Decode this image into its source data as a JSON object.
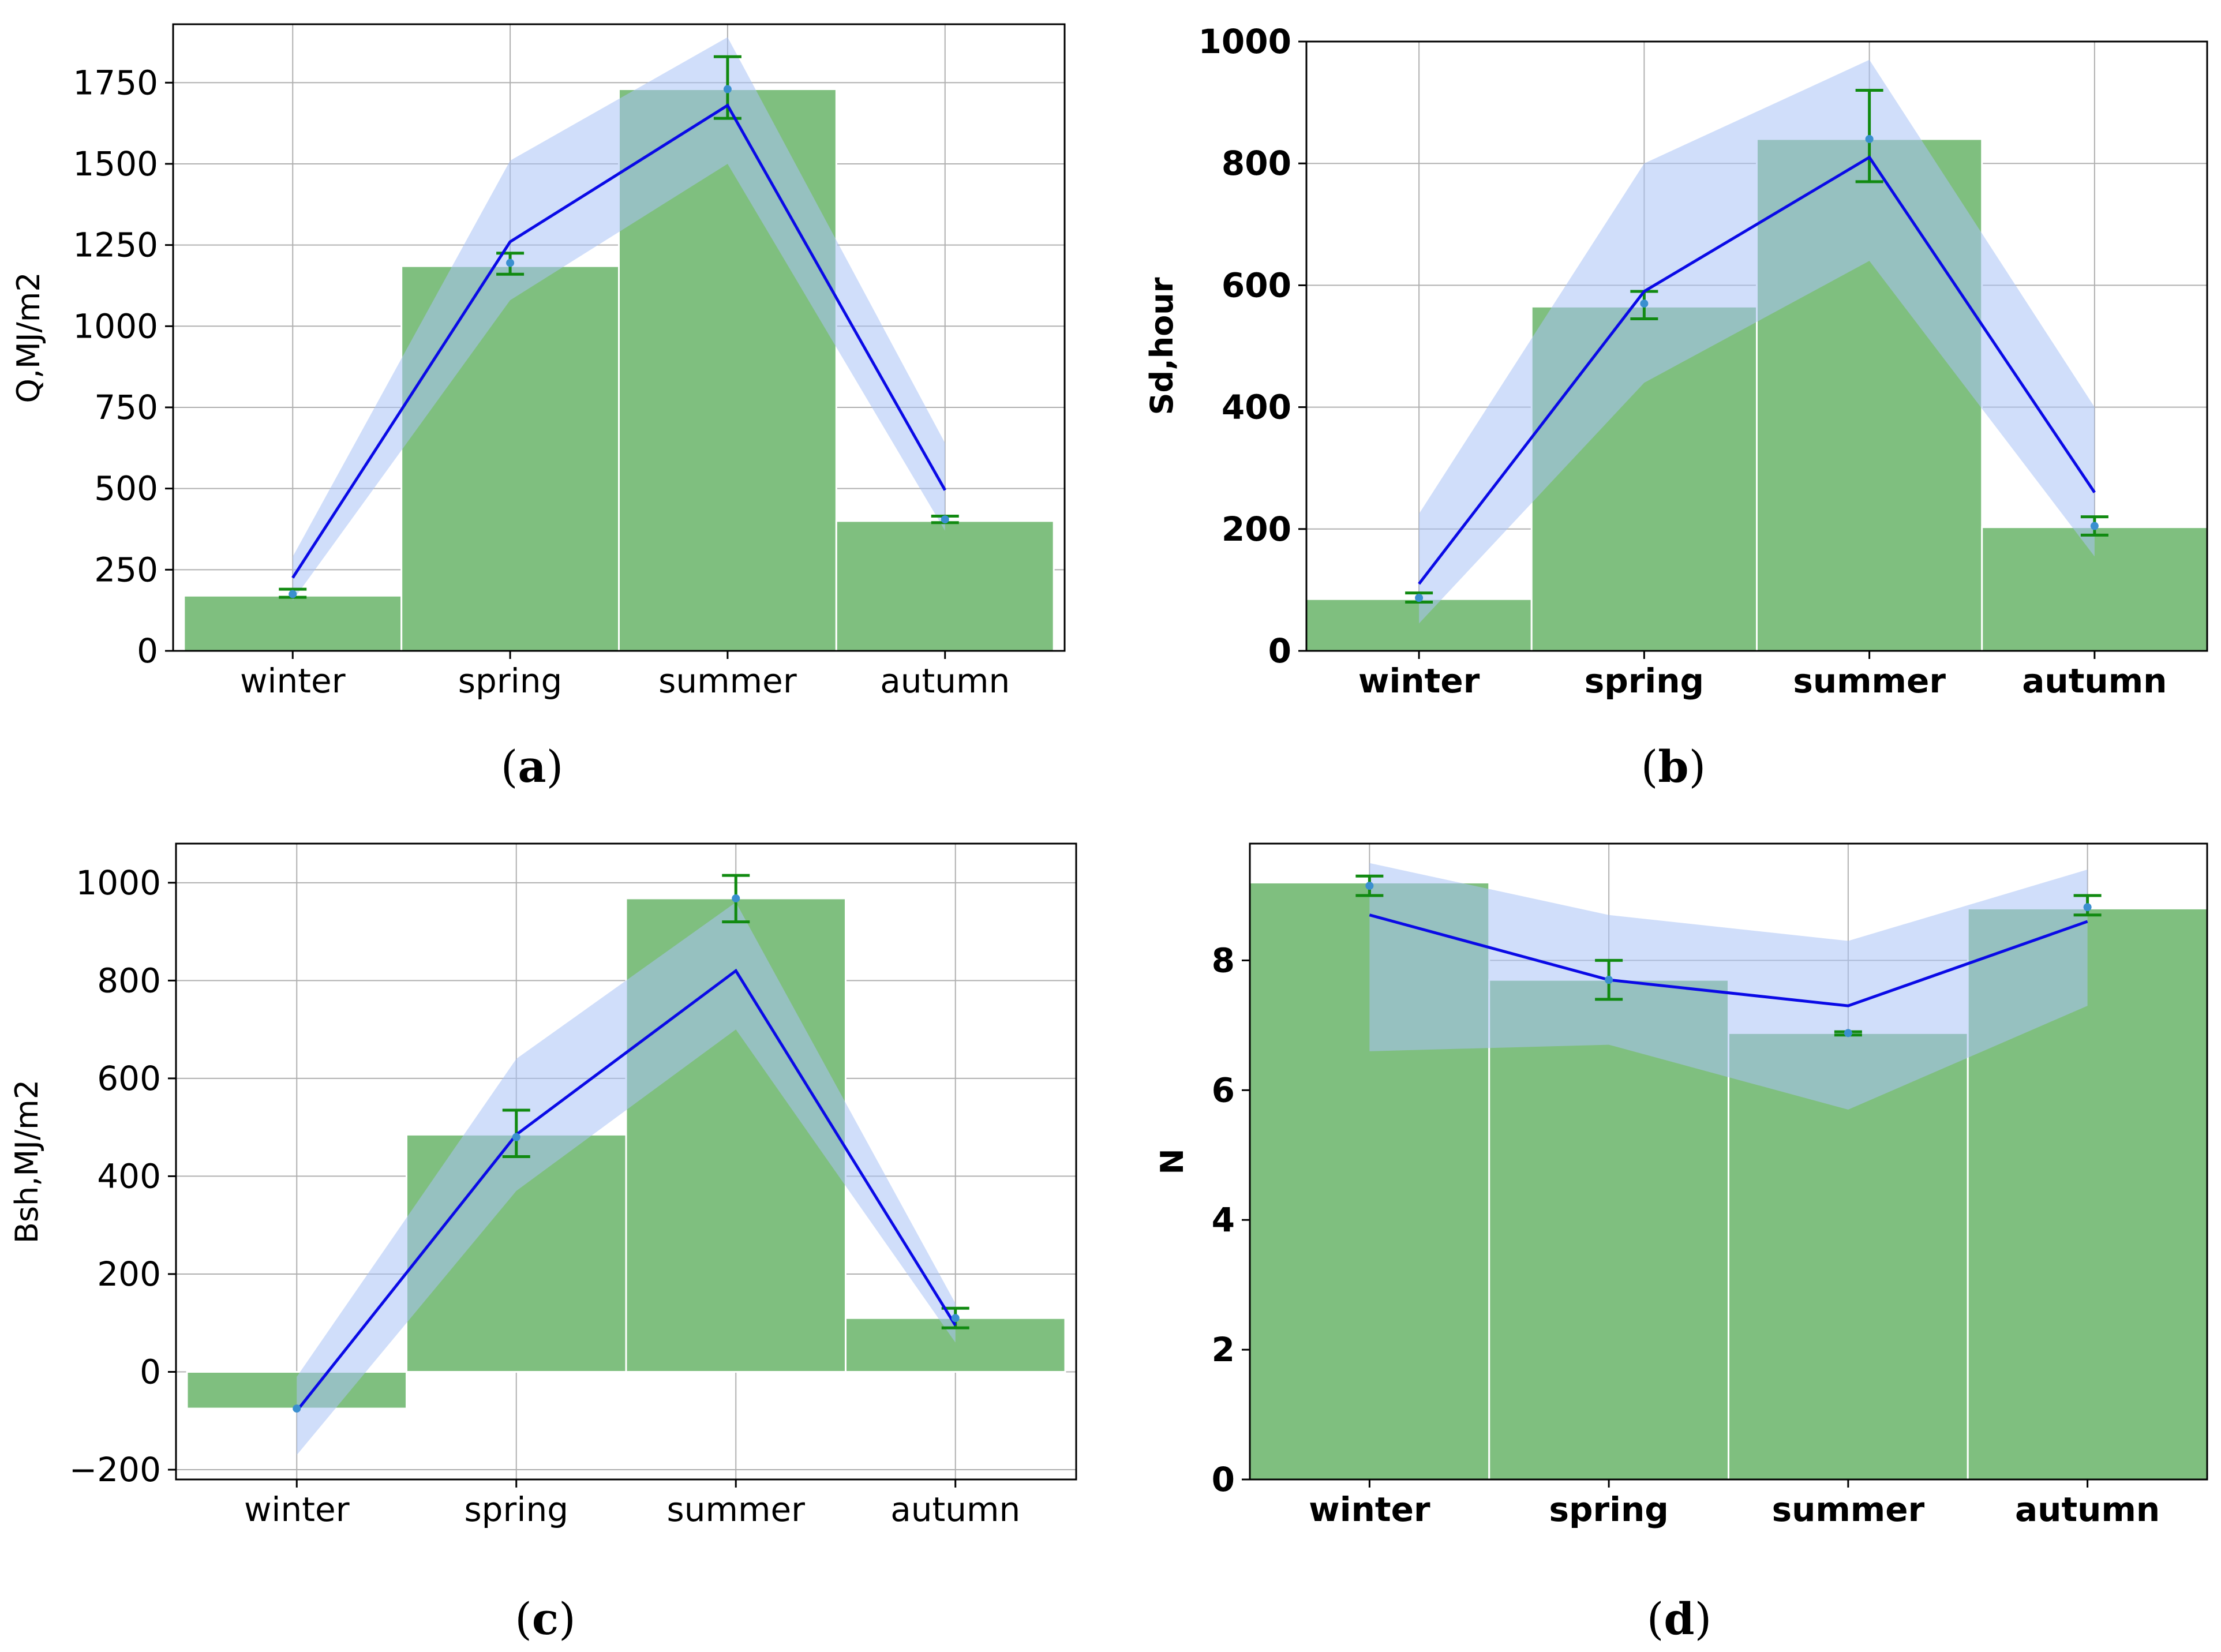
{
  "colors": {
    "bar": "#7fbf7f",
    "bar_edge": "#ffffff",
    "line": "#0a0ae6",
    "band": "#a9c2f5",
    "errorbar": "#118a11",
    "marker": "#3a8fd0",
    "grid": "#b0b0b0",
    "axis": "#000000"
  },
  "chart_data": [
    {
      "id": "a",
      "type": "bar",
      "caption_open": "(",
      "caption_letter": "a",
      "caption_close": ")",
      "ylabel": "Q,MJ/m2",
      "categories": [
        "winter",
        "spring",
        "summer",
        "autumn"
      ],
      "yticks": [
        0,
        250,
        500,
        750,
        1000,
        1250,
        1500,
        1750
      ],
      "ytick_labels": [
        "0",
        "250",
        "500",
        "750",
        "1000",
        "1250",
        "1500",
        "1750"
      ],
      "ylim": [
        0,
        1930
      ],
      "xlim": [
        -0.55,
        3.55
      ],
      "bars": [
        170,
        1185,
        1730,
        400
      ],
      "errors": [
        [
          165,
          190
        ],
        [
          1160,
          1225
        ],
        [
          1640,
          1830
        ],
        [
          395,
          415
        ]
      ],
      "markers": [
        175,
        1195,
        1730,
        405
      ],
      "line": [
        225,
        1260,
        1680,
        495
      ],
      "band_low": [
        155,
        1080,
        1500,
        370
      ],
      "band_high": [
        290,
        1510,
        1890,
        640
      ]
    },
    {
      "id": "b",
      "type": "bar",
      "caption_open": "(",
      "caption_letter": "b",
      "caption_close": ")",
      "ylabel": "Sd,hour",
      "categories": [
        "winter",
        "spring",
        "summer",
        "autumn"
      ],
      "yticks": [
        0,
        200,
        400,
        600,
        800,
        1000
      ],
      "ytick_labels": [
        "0",
        "200",
        "400",
        "600",
        "800",
        "1000"
      ],
      "ylim": [
        0,
        1000
      ],
      "xlim": [
        -0.5,
        3.5
      ],
      "bars": [
        85,
        565,
        840,
        203
      ],
      "errors": [
        [
          80,
          95
        ],
        [
          545,
          590
        ],
        [
          770,
          920
        ],
        [
          190,
          220
        ]
      ],
      "markers": [
        87,
        570,
        840,
        205
      ],
      "line": [
        110,
        590,
        810,
        260
      ],
      "band_low": [
        45,
        440,
        640,
        155
      ],
      "band_high": [
        225,
        800,
        970,
        400
      ]
    },
    {
      "id": "c",
      "type": "bar",
      "caption_open": "(",
      "caption_letter": "c",
      "caption_close": ")",
      "ylabel": "Bsh,MJ/m2",
      "categories": [
        "winter",
        "spring",
        "summer",
        "autumn"
      ],
      "yticks": [
        -200,
        0,
        200,
        400,
        600,
        800,
        1000
      ],
      "ytick_labels": [
        "−200",
        "0",
        "200",
        "400",
        "600",
        "800",
        "1000"
      ],
      "ylim": [
        -220,
        1080
      ],
      "xlim": [
        -0.55,
        3.55
      ],
      "bars": [
        -75,
        485,
        968,
        110
      ],
      "errors": [
        [
          -75,
          -75
        ],
        [
          440,
          535
        ],
        [
          920,
          1015
        ],
        [
          90,
          130
        ]
      ],
      "markers": [
        -75,
        480,
        968,
        110
      ],
      "line": [
        -80,
        485,
        820,
        95
      ],
      "band_low": [
        -170,
        370,
        700,
        60
      ],
      "band_high": [
        -10,
        640,
        960,
        140
      ]
    },
    {
      "id": "d",
      "type": "bar",
      "caption_open": "(",
      "caption_letter": "d",
      "caption_close": ")",
      "ylabel": "N",
      "categories": [
        "winter",
        "spring",
        "summer",
        "autumn"
      ],
      "yticks": [
        0,
        2,
        4,
        6,
        8
      ],
      "ytick_labels": [
        "0",
        "2",
        "4",
        "6",
        "8"
      ],
      "ylim": [
        0,
        9.8
      ],
      "xlim": [
        -0.5,
        3.5
      ],
      "bars": [
        9.2,
        7.7,
        6.88,
        8.8
      ],
      "errors": [
        [
          9.0,
          9.3
        ],
        [
          7.4,
          8.0
        ],
        [
          6.85,
          6.9
        ],
        [
          8.7,
          9.0
        ]
      ],
      "markers": [
        9.15,
        7.7,
        6.88,
        8.82
      ],
      "line": [
        8.7,
        7.7,
        7.3,
        8.6
      ],
      "band_low": [
        6.6,
        6.7,
        5.7,
        7.3
      ],
      "band_high": [
        9.5,
        8.7,
        8.3,
        9.4
      ]
    }
  ]
}
